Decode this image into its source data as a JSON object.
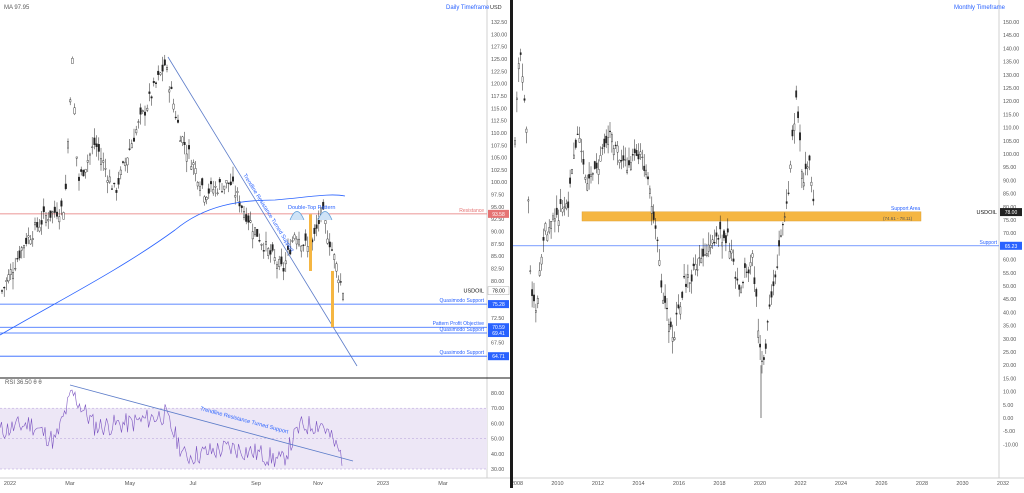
{
  "left_chart": {
    "header_label": "MA  97.95",
    "timeframe": "Daily Timeframe",
    "symbol": "USDOIL",
    "axis_unit": "USD",
    "price_axis": [
      132.5,
      130.0,
      127.5,
      125.0,
      122.5,
      120.0,
      117.5,
      115.0,
      112.5,
      110.0,
      107.5,
      105.0,
      102.5,
      100.0,
      97.5,
      95.0,
      92.5,
      90.0,
      87.5,
      85.0,
      82.5,
      80.0,
      77.5,
      75.0,
      72.5,
      70.0,
      67.5
    ],
    "x_axis": [
      "2022",
      "Mar",
      "May",
      "Jul",
      "Sep",
      "Nov",
      "2023",
      "Mar"
    ],
    "levels": {
      "resistance": {
        "label": "Resistance",
        "value": "93.58",
        "y": 93.58,
        "color": "#e57373"
      },
      "quasimodo_1": {
        "label": "Quasimodo Support",
        "value": "75.28",
        "y": 75.28,
        "color": "#2962ff"
      },
      "pattern_objective": {
        "label": "Pattern Profit Objective",
        "value": "70.59",
        "y": 70.59,
        "color": "#2962ff"
      },
      "quasimodo_2": {
        "label": "Quasimodo Support",
        "value": "69.41",
        "y": 69.41,
        "color": "#2962ff"
      },
      "quasimodo_3": {
        "label": "Quasimodo Support",
        "value": "64.71",
        "y": 64.71,
        "color": "#2962ff"
      }
    },
    "current_price": "78.00",
    "annotations": {
      "trendline": "Trendline Resistance Turned Support",
      "double_top": "Double-Top Pattern"
    }
  },
  "rsi": {
    "header_label": "RSI  36.50  θ  θ",
    "axis": [
      80.0,
      70.0,
      60.0,
      50.0,
      40.0,
      30.0
    ],
    "annotation": "Trendline Resistance Turned Support",
    "color": "#7e57c2",
    "band_color": "#ede7f6"
  },
  "right_chart": {
    "timeframe": "Monthly Timeframe",
    "symbol": "USDOIL",
    "price_axis": [
      150.0,
      145.0,
      140.0,
      135.0,
      130.0,
      125.0,
      120.0,
      115.0,
      110.0,
      105.0,
      100.0,
      95.0,
      90.0,
      85.0,
      80.0,
      75.0,
      70.0,
      65.0,
      60.0,
      55.0,
      50.0,
      45.0,
      40.0,
      35.0,
      30.0,
      25.0,
      20.0,
      15.0,
      10.0,
      5.0,
      0.0,
      -5.0,
      -10.0
    ],
    "x_axis": [
      "2008",
      "2010",
      "2012",
      "2014",
      "2016",
      "2018",
      "2020",
      "2022",
      "2024",
      "2026",
      "2028",
      "2030",
      "2032"
    ],
    "support_area": {
      "label": "Support Area",
      "range_label": "(74.61 - 78.11)",
      "low": 74.61,
      "high": 78.11,
      "color": "#f5b642"
    },
    "support": {
      "label": "Support",
      "value": "65.23",
      "y": 65.23,
      "color": "#2962ff"
    },
    "current_price": "78.00"
  }
}
